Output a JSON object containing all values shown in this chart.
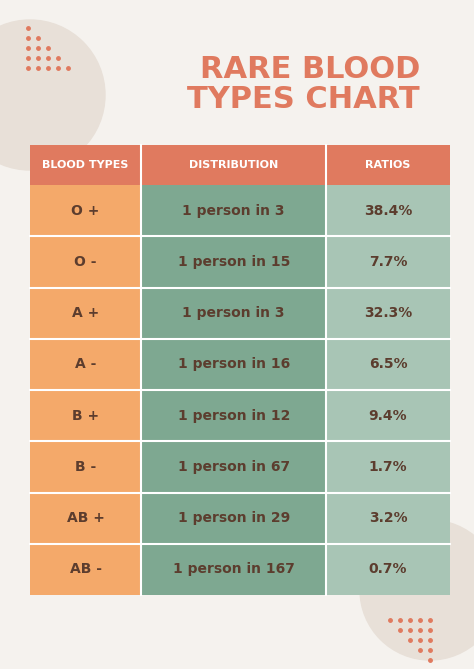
{
  "title_line1": "RARE BLOOD",
  "title_line2": "TYPES CHART",
  "title_color": "#E07A5F",
  "background_color": "#F5F2EE",
  "header_bg_color": "#E07A5F",
  "header_text_color": "#FFFFFF",
  "col1_bg_color": "#F4A96A",
  "col2_bg_color": "#7EA891",
  "col3_bg_color": "#A8C5B5",
  "cell_text_color": "#5C3D2E",
  "headers": [
    "BLOOD TYPES",
    "DISTRIBUTION",
    "RATIOS"
  ],
  "blood_types": [
    "O +",
    "O -",
    "A +",
    "A -",
    "B +",
    "B -",
    "AB +",
    "AB -"
  ],
  "distributions": [
    "1 person in 3",
    "1 person in 15",
    "1 person in 3",
    "1 person in 16",
    "1 person in 12",
    "1 person in 67",
    "1 person in 29",
    "1 person in 167"
  ],
  "ratios": [
    "38.4%",
    "7.7%",
    "32.3%",
    "6.5%",
    "9.4%",
    "1.7%",
    "3.2%",
    "0.7%"
  ],
  "dot_color": "#E07A5F",
  "circle_color": "#E8E0D8"
}
